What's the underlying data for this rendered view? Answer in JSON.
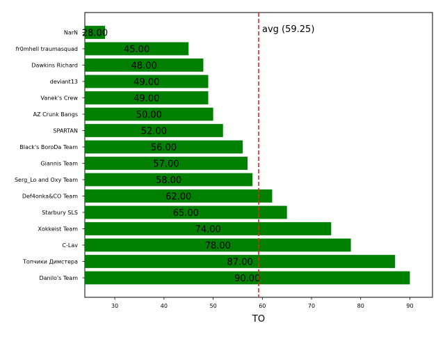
{
  "chart_data": {
    "type": "bar",
    "orientation": "horizontal",
    "categories": [
      "NarN",
      "fr0mhell traumasquad",
      "Dawkins Richard",
      "deviant13",
      "Vanek's Crew",
      "AZ Crunk Bangs",
      "SPARTAN",
      "Black's BoroDa Team",
      "Giannis Team",
      "Serg_Lo and Oxy Team",
      "Def4onka&CO Team",
      "Starbury SLS",
      "Xokkeist Team",
      "C-Lav",
      "Топчики Димстера",
      "Danilo's Team"
    ],
    "values": [
      28,
      45,
      48,
      49,
      49,
      50,
      52,
      56,
      57,
      58,
      62,
      65,
      74,
      78,
      87,
      90
    ],
    "value_labels": [
      "28.00",
      "45.00",
      "48.00",
      "49.00",
      "49.00",
      "50.00",
      "52.00",
      "56.00",
      "57.00",
      "58.00",
      "62.00",
      "65.00",
      "74.00",
      "78.00",
      "87.00",
      "90.00"
    ],
    "xlabel": "TO",
    "ylabel": "",
    "title": "",
    "xlim": [
      23.9,
      94.6
    ],
    "xticks": [
      30,
      40,
      50,
      60,
      70,
      80,
      90
    ],
    "xtick_labels": [
      "30",
      "40",
      "50",
      "60",
      "70",
      "80",
      "90"
    ],
    "bar_color": "#008000",
    "reference_line": {
      "value": 59.25,
      "label": "avg (59.25)",
      "color": "#d62728",
      "style": "dashed"
    },
    "grid": false
  }
}
